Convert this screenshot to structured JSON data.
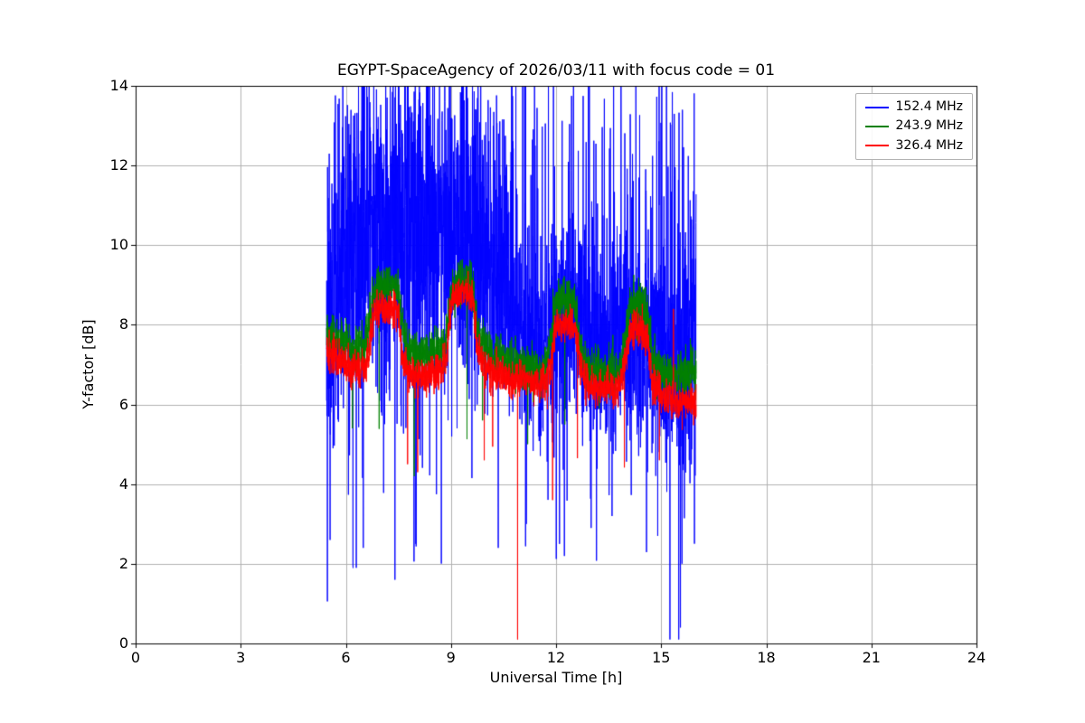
{
  "chart_data": {
    "type": "line",
    "title": "EGYPT-SpaceAgency of 2026/03/11 with focus code = 01",
    "xlabel": "Universal Time [h]",
    "ylabel": "Y-factor [dB]",
    "xlim": [
      0,
      24
    ],
    "ylim": [
      0,
      14
    ],
    "xticks": [
      0,
      3,
      6,
      9,
      12,
      15,
      18,
      21,
      24
    ],
    "yticks": [
      0,
      2,
      4,
      6,
      8,
      10,
      12,
      14
    ],
    "grid": true,
    "grid_color": "#b0b0b0",
    "legend_position": "upper right",
    "x_start": 5.45,
    "x_end": 16.0,
    "sample_step": 0.004,
    "seed": 42,
    "series": [
      {
        "name": "152.4 MHz",
        "color": "#0000ff",
        "mean": [
          [
            5.45,
            8.2
          ],
          [
            6,
            9.8
          ],
          [
            6.5,
            10.2
          ],
          [
            9.5,
            10.2
          ],
          [
            10.3,
            9.4
          ],
          [
            11,
            8.0
          ],
          [
            11.5,
            7.3
          ],
          [
            12,
            7.9
          ],
          [
            12.5,
            8.3
          ],
          [
            13,
            7.7
          ],
          [
            13.5,
            7.3
          ],
          [
            14,
            7.9
          ],
          [
            14.5,
            7.7
          ],
          [
            15,
            7.3
          ],
          [
            15.5,
            7.1
          ],
          [
            16,
            8.0
          ]
        ],
        "std_profile": [
          [
            5.45,
            2.2
          ],
          [
            9.5,
            2.2
          ],
          [
            10.3,
            1.9
          ],
          [
            11,
            1.3
          ],
          [
            12,
            1.3
          ],
          [
            15.3,
            1.3
          ],
          [
            15.7,
            1.9
          ],
          [
            16,
            2.2
          ]
        ],
        "down_spike_prob": 0.008,
        "down_spike_range": [
          1.8,
          4.6
        ],
        "up_spike_prob": 0.05,
        "up_spike_range": [
          11.0,
          14.6
        ],
        "spikes": [
          [
            5.55,
            2.6
          ],
          [
            6.3,
            1.9
          ],
          [
            6.5,
            2.4
          ],
          [
            7.4,
            1.6
          ],
          [
            8.0,
            2.5
          ],
          [
            10.35,
            2.4
          ],
          [
            11.15,
            3.0
          ],
          [
            12.1,
            2.5
          ],
          [
            13.0,
            2.9
          ],
          [
            13.6,
            3.2
          ],
          [
            14.9,
            2.7
          ],
          [
            15.25,
            0.1
          ],
          [
            15.5,
            0.1
          ],
          [
            15.55,
            0.4
          ]
        ]
      },
      {
        "name": "243.9 MHz",
        "color": "#008000",
        "mean": [
          [
            5.45,
            7.8
          ],
          [
            5.8,
            7.6
          ],
          [
            6.2,
            7.4
          ],
          [
            6.55,
            7.4
          ],
          [
            6.8,
            8.8
          ],
          [
            7.0,
            9.0
          ],
          [
            7.3,
            9.0
          ],
          [
            7.5,
            8.9
          ],
          [
            7.65,
            7.8
          ],
          [
            7.8,
            7.3
          ],
          [
            8.2,
            7.2
          ],
          [
            8.6,
            7.3
          ],
          [
            8.85,
            7.5
          ],
          [
            9.05,
            9.0
          ],
          [
            9.3,
            9.1
          ],
          [
            9.6,
            9.0
          ],
          [
            9.75,
            7.9
          ],
          [
            9.9,
            7.5
          ],
          [
            10.3,
            7.2
          ],
          [
            10.8,
            7.0
          ],
          [
            11.3,
            6.9
          ],
          [
            11.7,
            6.9
          ],
          [
            12.0,
            8.5
          ],
          [
            12.3,
            8.6
          ],
          [
            12.55,
            8.5
          ],
          [
            12.7,
            7.4
          ],
          [
            12.9,
            6.9
          ],
          [
            13.3,
            6.8
          ],
          [
            13.8,
            6.8
          ],
          [
            14.1,
            8.4
          ],
          [
            14.4,
            8.5
          ],
          [
            14.6,
            8.3
          ],
          [
            14.75,
            7.1
          ],
          [
            15.0,
            6.8
          ],
          [
            15.4,
            6.7
          ],
          [
            15.8,
            6.9
          ],
          [
            16.0,
            6.8
          ]
        ],
        "noise_std": 0.28,
        "down_spike_prob": 0.002,
        "down_spike_range": [
          4.5,
          6.0
        ],
        "spikes": [
          [
            7.95,
            4.2
          ],
          [
            9.9,
            5.6
          ],
          [
            12.25,
            5.5
          ]
        ]
      },
      {
        "name": "326.4 MHz",
        "color": "#ff0000",
        "mean": [
          [
            5.45,
            7.3
          ],
          [
            5.8,
            7.1
          ],
          [
            6.2,
            6.9
          ],
          [
            6.55,
            6.9
          ],
          [
            6.7,
            7.6
          ],
          [
            6.8,
            8.3
          ],
          [
            7.0,
            8.45
          ],
          [
            7.3,
            8.4
          ],
          [
            7.5,
            8.3
          ],
          [
            7.6,
            7.2
          ],
          [
            7.8,
            6.8
          ],
          [
            8.2,
            6.7
          ],
          [
            8.6,
            6.8
          ],
          [
            8.85,
            7.0
          ],
          [
            9.0,
            8.5
          ],
          [
            9.15,
            8.8
          ],
          [
            9.45,
            8.8
          ],
          [
            9.65,
            8.6
          ],
          [
            9.75,
            7.4
          ],
          [
            9.9,
            7.0
          ],
          [
            10.3,
            6.8
          ],
          [
            10.8,
            6.6
          ],
          [
            11.3,
            6.6
          ],
          [
            11.7,
            6.5
          ],
          [
            11.85,
            7.0
          ],
          [
            12.0,
            8.0
          ],
          [
            12.3,
            8.0
          ],
          [
            12.55,
            7.9
          ],
          [
            12.7,
            7.0
          ],
          [
            12.9,
            6.5
          ],
          [
            13.3,
            6.4
          ],
          [
            13.8,
            6.4
          ],
          [
            14.0,
            7.2
          ],
          [
            14.1,
            7.9
          ],
          [
            14.4,
            7.9
          ],
          [
            14.6,
            7.7
          ],
          [
            14.75,
            6.6
          ],
          [
            15.0,
            6.2
          ],
          [
            15.4,
            6.1
          ],
          [
            15.8,
            6.1
          ],
          [
            16.0,
            6.0
          ]
        ],
        "noise_std": 0.22,
        "down_spike_prob": 0.002,
        "down_spike_range": [
          4.3,
          5.8
        ],
        "spikes": [
          [
            8.05,
            4.3
          ],
          [
            9.95,
            4.6
          ],
          [
            10.9,
            0.1
          ],
          [
            11.9,
            3.6
          ],
          [
            14.95,
            4.6
          ],
          [
            15.35,
            8.4
          ]
        ]
      }
    ]
  }
}
